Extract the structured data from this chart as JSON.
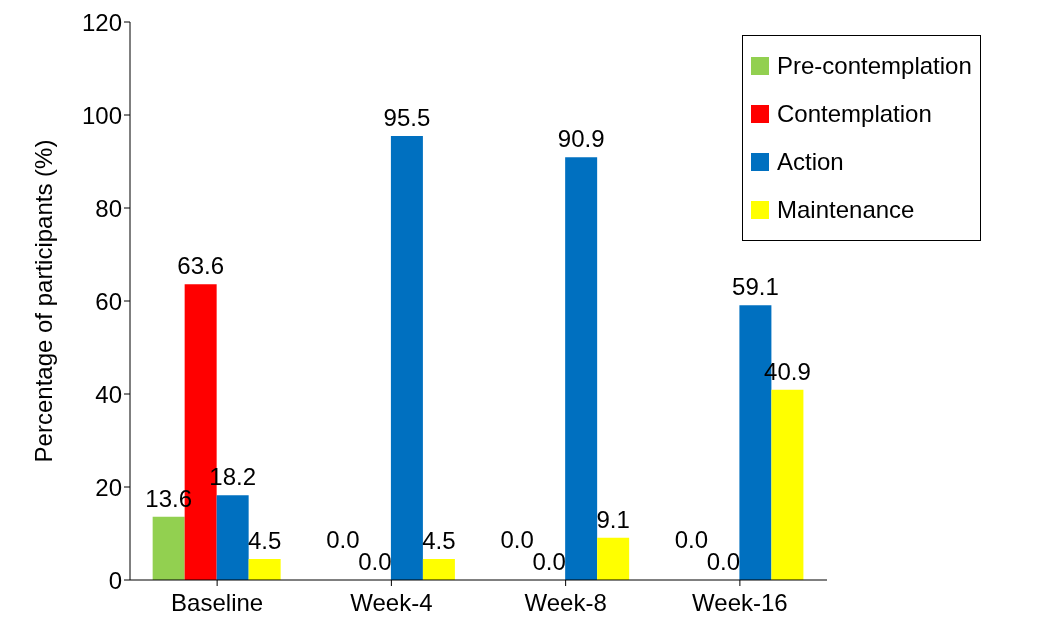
{
  "chart_data": {
    "type": "bar",
    "ylabel": "Percentage of participants (%)",
    "categories": [
      "Baseline",
      "Week-4",
      "Week-8",
      "Week-16"
    ],
    "series": [
      {
        "name": "Pre-contemplation",
        "color": "#92d050",
        "values": [
          13.6,
          0.0,
          0.0,
          0.0
        ],
        "value_labels": [
          "13.6",
          "0.0",
          "0.0",
          "0.0"
        ]
      },
      {
        "name": "Contemplation",
        "color": "#ff0000",
        "values": [
          63.6,
          0.0,
          0.0,
          0.0
        ],
        "value_labels": [
          "63.6",
          "0.0",
          "0.0",
          "0.0"
        ]
      },
      {
        "name": "Action",
        "color": "#0070c0",
        "values": [
          18.2,
          95.5,
          90.9,
          59.1
        ],
        "value_labels": [
          "18.2",
          "95.5",
          "90.9",
          "59.1"
        ]
      },
      {
        "name": "Maintenance",
        "color": "#ffff00",
        "values": [
          4.5,
          4.5,
          9.1,
          40.9
        ],
        "value_labels": [
          "4.5",
          "4.5",
          "9.1",
          "40.9"
        ]
      }
    ],
    "ylim": [
      0,
      120
    ],
    "yticks": [
      0,
      20,
      40,
      60,
      80,
      100,
      120
    ],
    "grid": false,
    "legend": "right"
  }
}
